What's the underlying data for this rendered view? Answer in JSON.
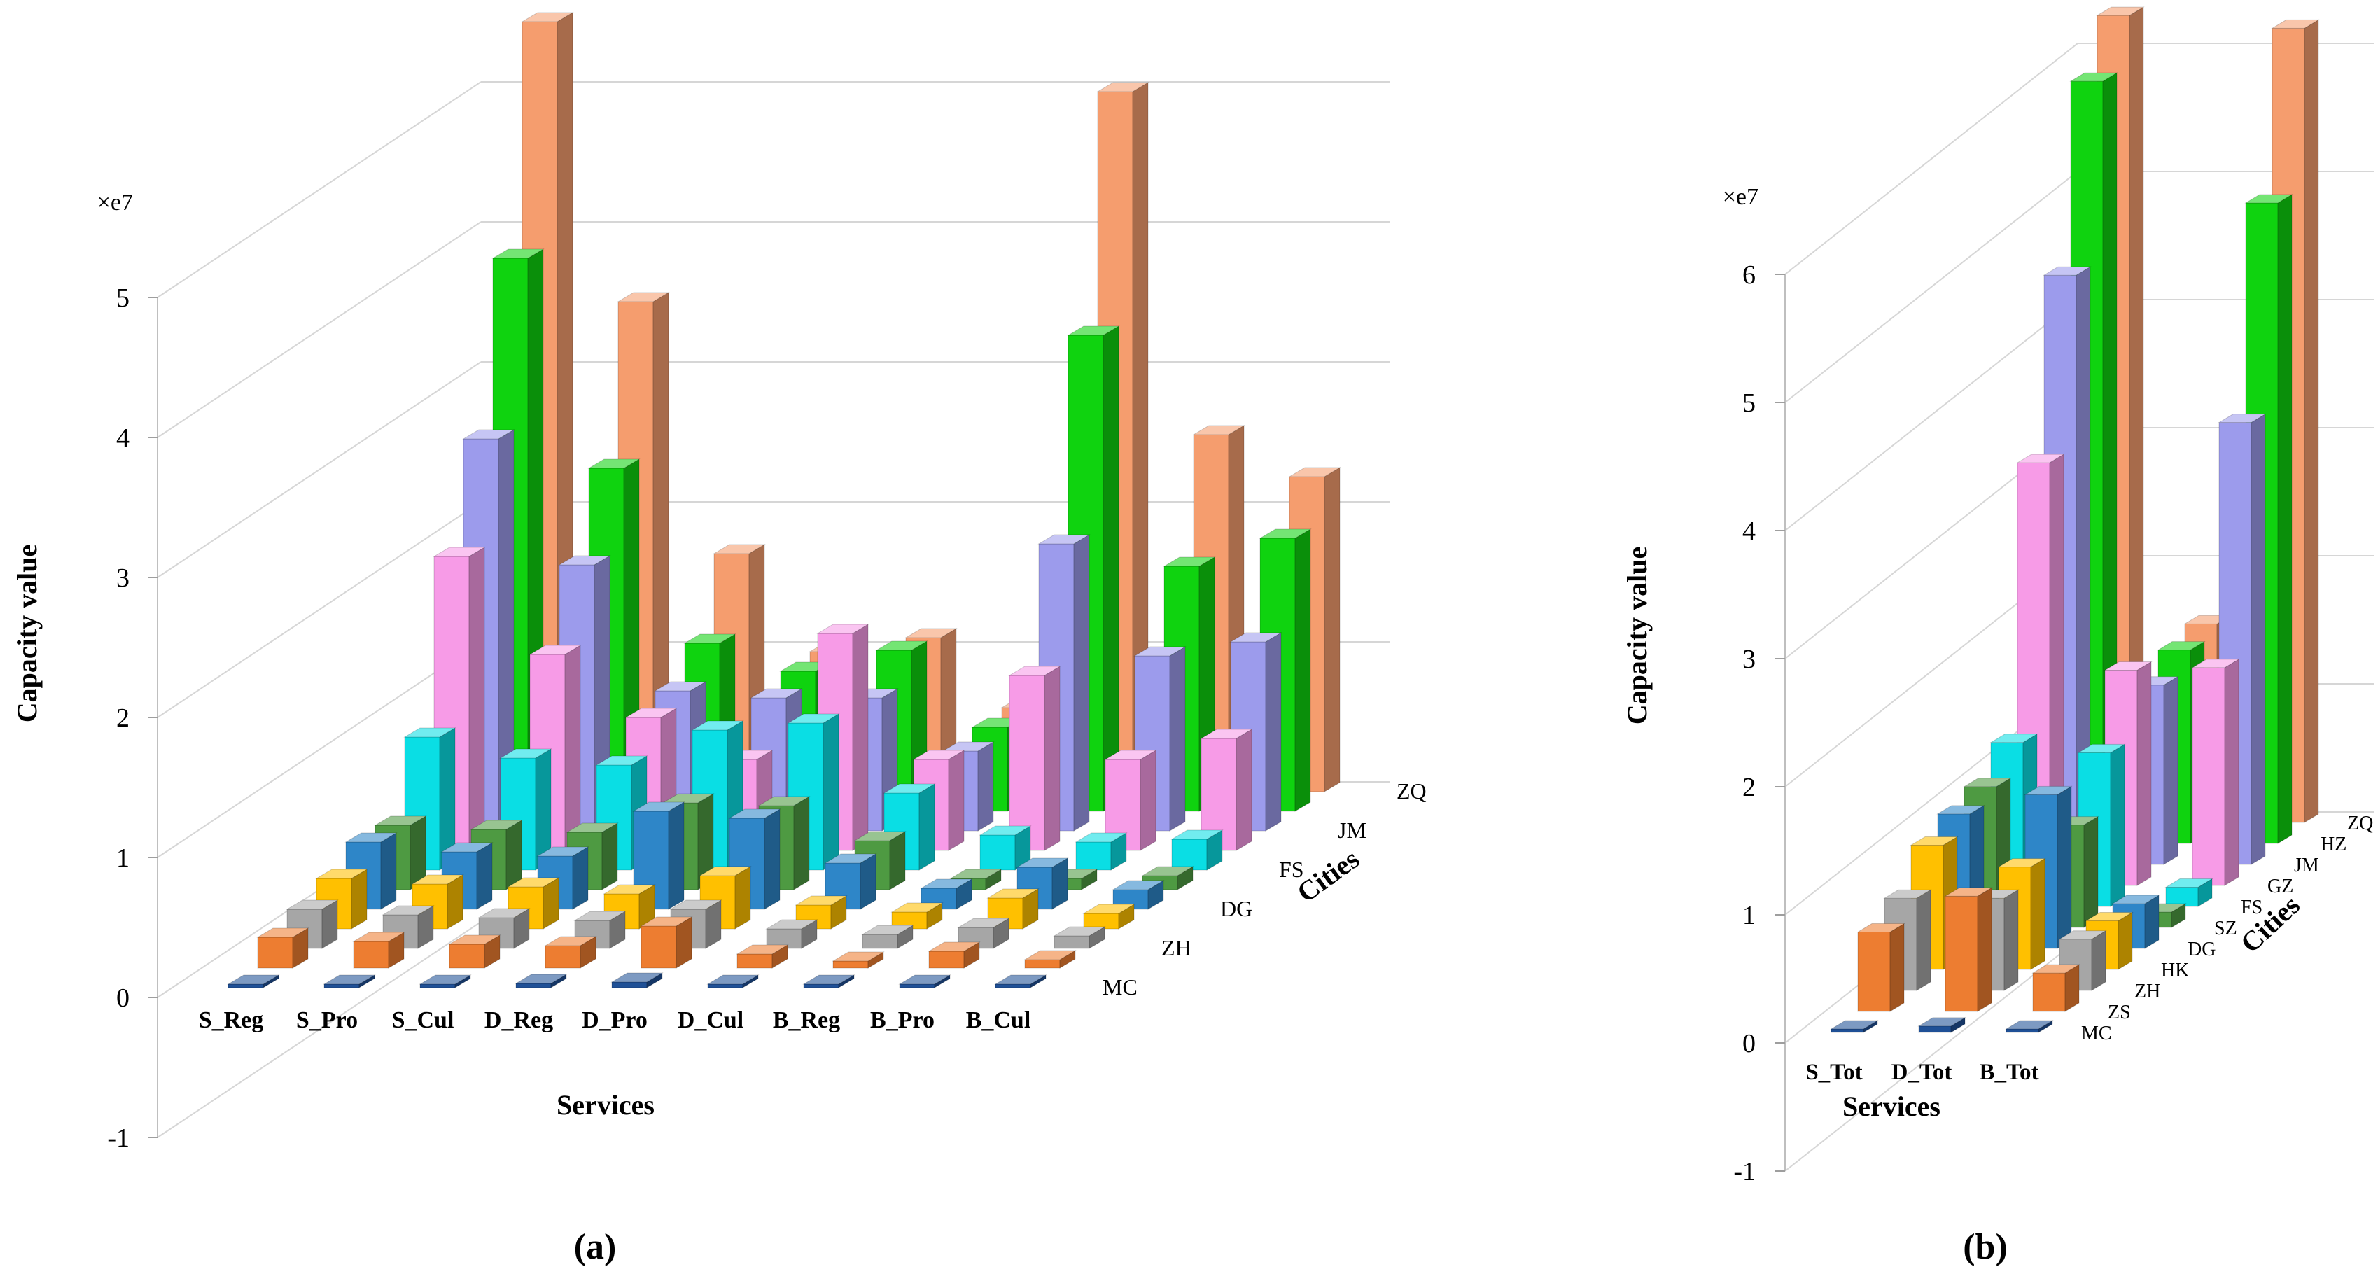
{
  "figure": {
    "panel_a_caption": "(a)",
    "panel_b_caption": "(b)"
  },
  "chart_data": [
    {
      "type": "bar",
      "projection": "3d-bar",
      "caption": "(a)",
      "xlabel": "Services",
      "ylabel": "Capacity value",
      "depth_label": "Cities",
      "y_multiplier_label": "×e7",
      "ylim": [
        -1,
        5
      ],
      "yticks": [
        -1,
        0,
        1,
        2,
        3,
        4,
        5
      ],
      "grid": true,
      "legend_position": "none",
      "categories": [
        "S_Reg",
        "S_Pro",
        "S_Cul",
        "D_Reg",
        "D_Pro",
        "D_Cul",
        "B_Reg",
        "B_Pro",
        "B_Cul"
      ],
      "rows_front_to_back": [
        "MC",
        "ZS",
        "ZH",
        "HK",
        "DG",
        "SZ",
        "FS",
        "GZ",
        "JM",
        "HZ",
        "ZQ"
      ],
      "row_labels_shown": [
        "MC",
        "ZH",
        "DG",
        "FS",
        "JM",
        "ZQ"
      ],
      "units": "1e7",
      "series": [
        {
          "name": "MC",
          "color": "#1F5096",
          "values": [
            0.02,
            0.02,
            0.02,
            0.03,
            0.04,
            0.02,
            0.01,
            0.01,
            0.01
          ]
        },
        {
          "name": "ZS",
          "color": "#ED7D31",
          "values": [
            0.22,
            0.19,
            0.17,
            0.16,
            0.3,
            0.1,
            0.05,
            0.12,
            0.06
          ]
        },
        {
          "name": "ZH",
          "color": "#A6A6A6",
          "values": [
            0.28,
            0.24,
            0.22,
            0.2,
            0.28,
            0.14,
            0.1,
            0.15,
            0.09
          ]
        },
        {
          "name": "HK",
          "color": "#FFC000",
          "values": [
            0.36,
            0.32,
            0.3,
            0.25,
            0.38,
            0.17,
            0.12,
            0.22,
            0.11
          ]
        },
        {
          "name": "DG",
          "color": "#2E86C8",
          "values": [
            0.48,
            0.41,
            0.38,
            0.7,
            0.65,
            0.33,
            0.15,
            0.3,
            0.14
          ]
        },
        {
          "name": "SZ",
          "color": "#4E9A42",
          "values": [
            0.46,
            0.43,
            0.41,
            0.62,
            0.6,
            0.35,
            0.08,
            0.08,
            0.1
          ]
        },
        {
          "name": "FS",
          "color": "#0ADEE4",
          "values": [
            0.95,
            0.8,
            0.75,
            1.0,
            1.05,
            0.55,
            0.25,
            0.2,
            0.22
          ]
        },
        {
          "name": "GZ",
          "color": "#F79BE7",
          "values": [
            2.1,
            1.4,
            0.95,
            0.65,
            1.55,
            0.65,
            1.25,
            0.65,
            0.8
          ]
        },
        {
          "name": "JM",
          "color": "#9C9BEC",
          "values": [
            2.8,
            1.9,
            1.0,
            0.95,
            0.95,
            0.57,
            2.05,
            1.25,
            1.35
          ]
        },
        {
          "name": "HZ",
          "color": "#0FD30F",
          "values": [
            3.95,
            2.45,
            1.2,
            1.0,
            1.15,
            0.6,
            3.4,
            1.75,
            1.95
          ]
        },
        {
          "name": "ZQ",
          "color": "#F59D6E",
          "values": [
            5.5,
            3.5,
            1.7,
            1.0,
            1.1,
            0.6,
            5.0,
            2.55,
            2.25
          ]
        }
      ]
    },
    {
      "type": "bar",
      "projection": "3d-bar",
      "caption": "(b)",
      "xlabel": "Services",
      "ylabel": "Capacity value",
      "depth_label": "Cities",
      "y_multiplier_label": "×e7",
      "ylim": [
        -1,
        6
      ],
      "yticks": [
        -1,
        0,
        1,
        2,
        3,
        4,
        5,
        6
      ],
      "grid": true,
      "legend_position": "none",
      "categories": [
        "S_Tot",
        "D_Tot",
        "B_Tot"
      ],
      "rows_front_to_back": [
        "MC",
        "ZS",
        "ZH",
        "HK",
        "DG",
        "SZ",
        "FS",
        "GZ",
        "JM",
        "HZ",
        "ZQ"
      ],
      "row_labels_shown": [
        "MC",
        "ZS",
        "ZH",
        "HK",
        "DG",
        "SZ",
        "FS",
        "GZ",
        "JM",
        "HZ",
        "ZQ"
      ],
      "units": "1e7",
      "series": [
        {
          "name": "MC",
          "color": "#1F5096",
          "values": [
            0.02,
            0.05,
            0.02
          ]
        },
        {
          "name": "ZS",
          "color": "#ED7D31",
          "values": [
            0.62,
            0.9,
            0.3
          ]
        },
        {
          "name": "ZH",
          "color": "#A6A6A6",
          "values": [
            0.72,
            0.72,
            0.4
          ]
        },
        {
          "name": "HK",
          "color": "#FFC000",
          "values": [
            0.97,
            0.8,
            0.38
          ]
        },
        {
          "name": "DG",
          "color": "#2E86C8",
          "values": [
            1.05,
            1.2,
            0.35
          ]
        },
        {
          "name": "SZ",
          "color": "#4E9A42",
          "values": [
            1.1,
            0.8,
            0.12
          ]
        },
        {
          "name": "FS",
          "color": "#0ADEE4",
          "values": [
            1.28,
            1.2,
            0.15
          ]
        },
        {
          "name": "GZ",
          "color": "#F79BE7",
          "values": [
            3.3,
            1.68,
            1.7
          ]
        },
        {
          "name": "JM",
          "color": "#9C9BEC",
          "values": [
            4.6,
            1.4,
            3.45
          ]
        },
        {
          "name": "HZ",
          "color": "#0FD30F",
          "values": [
            5.95,
            1.51,
            5.0
          ]
        },
        {
          "name": "ZQ",
          "color": "#F59D6E",
          "values": [
            6.3,
            1.55,
            6.2
          ]
        }
      ]
    }
  ]
}
